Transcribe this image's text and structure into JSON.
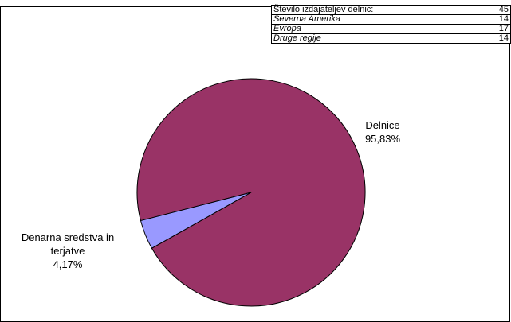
{
  "chart_data": {
    "type": "pie",
    "categories": [
      "Delnice",
      "Denarna sredstva in terjatve"
    ],
    "values": [
      95.83,
      4.17
    ],
    "value_labels": [
      "95,83%",
      "4,17%"
    ],
    "colors": [
      "#993366",
      "#9999ff"
    ]
  },
  "table": {
    "rows": [
      [
        "Število izdajateljev delnic:",
        45
      ],
      [
        "Severna Amerika",
        14
      ],
      [
        "Evropa",
        17
      ],
      [
        "Druge regije",
        14
      ]
    ]
  }
}
